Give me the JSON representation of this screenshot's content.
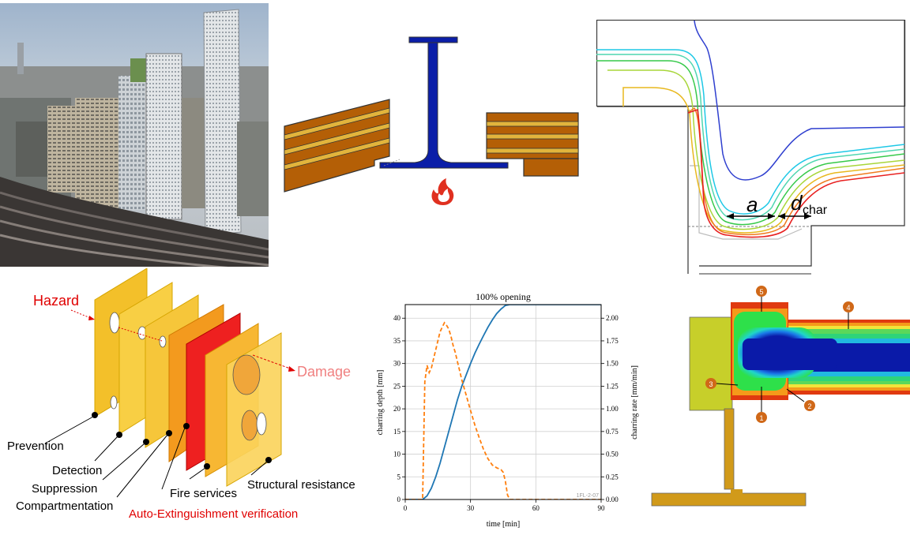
{
  "colors": {
    "steel": "#0b1ea8",
    "timber_dark": "#b45f06",
    "timber_light": "#e2b43c",
    "hazard_red": "#e00000",
    "damage_pink": "#f08080",
    "verification_red": "#e00000",
    "curve_blue": "#1f77b4",
    "curve_orange": "#ff7f0e"
  },
  "icons": [
    "fire-icon"
  ],
  "swiss_cheese": {
    "hazard": "Hazard",
    "damage": "Damage",
    "layers": {
      "prevention": "Prevention",
      "detection": "Detection",
      "suppression": "Suppression",
      "compartmentation": "Compartmentation",
      "fire_services": "Fire services",
      "structural_resistance": "Structural resistance"
    },
    "verification": "Auto-Extinguishment verification"
  },
  "charring_section": {
    "label_a": "a",
    "label_dchar": "d",
    "label_dchar_sub": "char"
  },
  "markers": [
    "1",
    "2",
    "3",
    "4",
    "5"
  ],
  "chart_data": {
    "type": "line",
    "title": "100% opening",
    "xlabel": "time [min]",
    "ylabel_left": "charring depth [mm]",
    "ylabel_right": "charring rate [mm/min]",
    "xlim": [
      0,
      90
    ],
    "ylim_left": [
      0,
      43
    ],
    "ylim_right": [
      0,
      2.15
    ],
    "x_ticks": [
      "0",
      "30",
      "60",
      "90"
    ],
    "y_ticks_left": [
      "0",
      "5",
      "10",
      "15",
      "20",
      "25",
      "30",
      "35",
      "40"
    ],
    "y_ticks_right": [
      "0.00",
      "0.25",
      "0.50",
      "0.75",
      "1.00",
      "1.25",
      "1.50",
      "1.75",
      "2.00"
    ],
    "grid": true,
    "watermark": "1FL-2-07",
    "series": [
      {
        "axis": "left",
        "style": "solid",
        "x": [
          0,
          8,
          10,
          12,
          14,
          16,
          18,
          20,
          22,
          24,
          26,
          28,
          30,
          32,
          34,
          36,
          38,
          40,
          42,
          44,
          46,
          48,
          90
        ],
        "y": [
          0,
          0,
          0.8,
          2.5,
          5,
          8,
          11.5,
          15,
          18.5,
          22,
          25,
          27.5,
          30,
          32.3,
          34.3,
          36.2,
          38,
          39.6,
          41,
          42,
          42.8,
          43,
          43
        ]
      },
      {
        "axis": "right",
        "style": "dashed",
        "x": [
          0,
          8,
          9,
          10,
          11,
          12,
          13,
          14,
          15,
          16,
          17,
          18,
          19,
          20,
          21,
          22,
          23,
          24,
          25,
          26,
          28,
          30,
          32,
          34,
          36,
          38,
          40,
          42,
          44,
          45,
          46,
          47,
          48,
          90
        ],
        "y": [
          0,
          0,
          1.3,
          1.48,
          1.4,
          1.45,
          1.55,
          1.65,
          1.75,
          1.85,
          1.9,
          1.95,
          1.92,
          1.88,
          1.8,
          1.7,
          1.62,
          1.52,
          1.42,
          1.32,
          1.15,
          0.98,
          0.82,
          0.68,
          0.55,
          0.45,
          0.38,
          0.35,
          0.33,
          0.3,
          0.2,
          0.05,
          0,
          0
        ]
      }
    ]
  }
}
